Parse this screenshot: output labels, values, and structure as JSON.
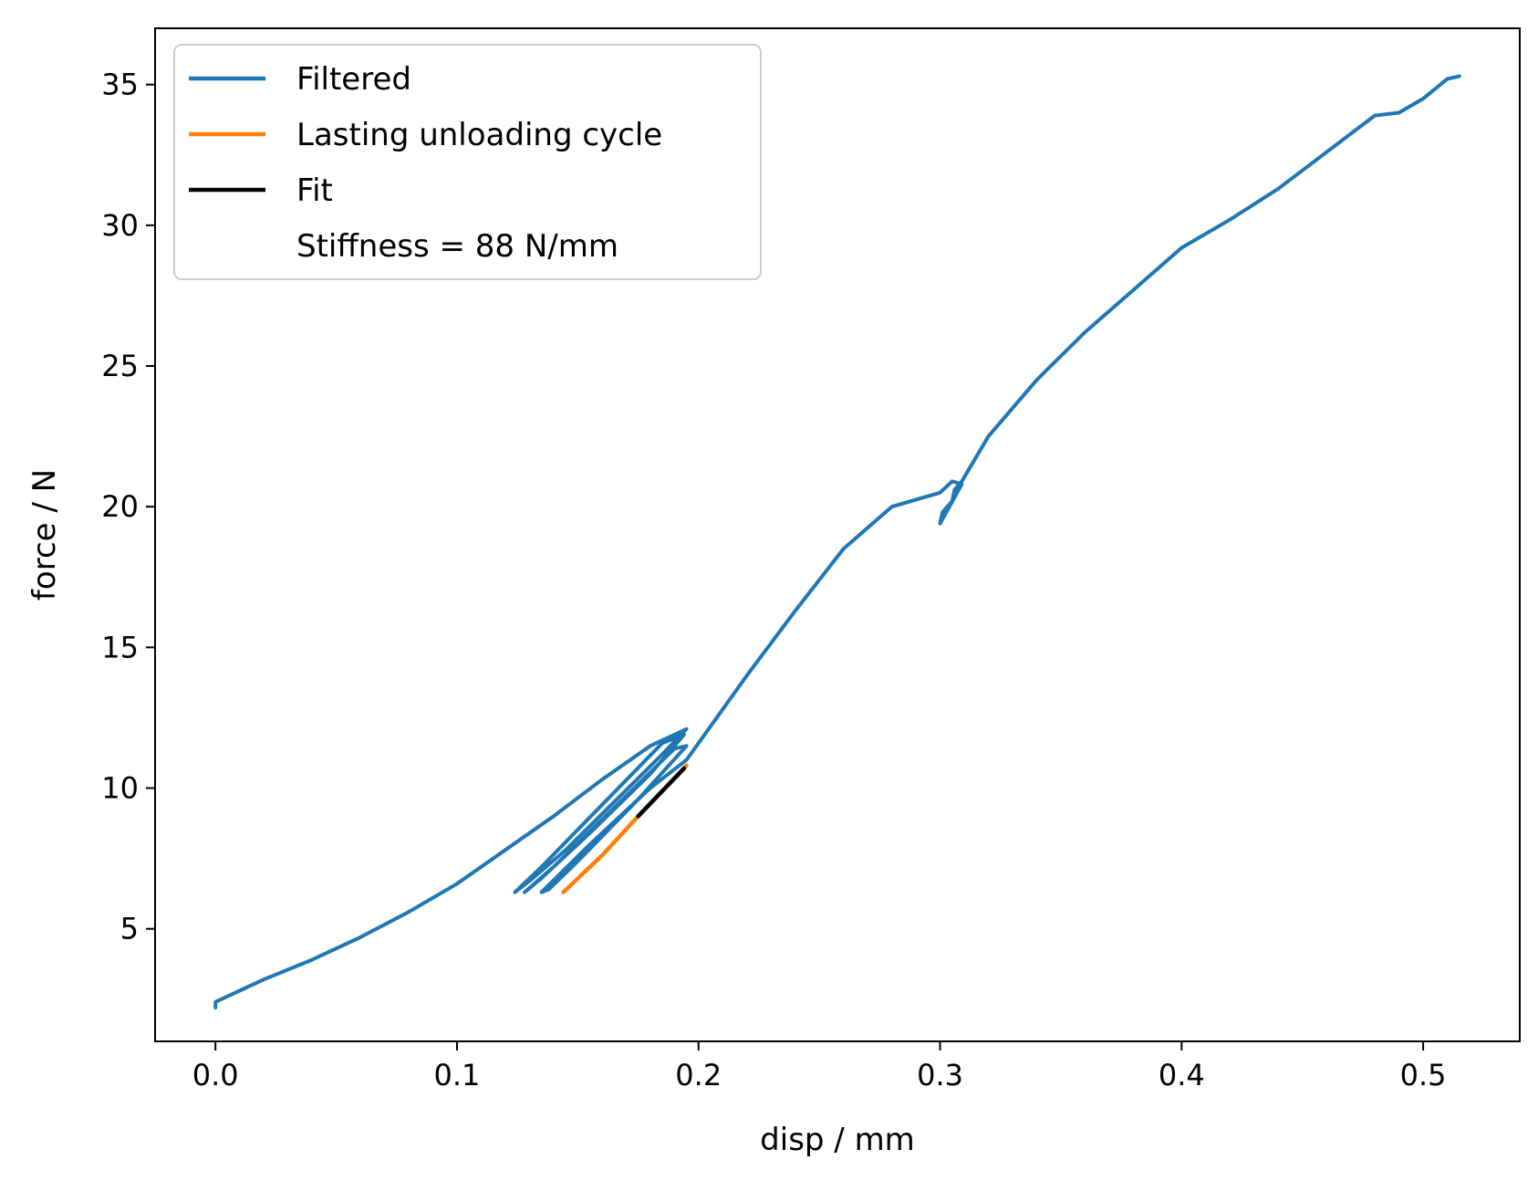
{
  "chart_data": {
    "type": "line",
    "title": "",
    "xlabel": "disp / mm",
    "ylabel": "force / N",
    "xlim": [
      -0.025,
      0.54
    ],
    "ylim": [
      1.0,
      37.0
    ],
    "xticks": [
      0.0,
      0.1,
      0.2,
      0.3,
      0.4,
      0.5
    ],
    "xtick_labels": [
      "0.0",
      "0.1",
      "0.2",
      "0.3",
      "0.4",
      "0.5"
    ],
    "yticks": [
      5,
      10,
      15,
      20,
      25,
      30,
      35
    ],
    "ytick_labels": [
      "5",
      "10",
      "15",
      "20",
      "25",
      "30",
      "35"
    ],
    "grid": false,
    "legend_position": "upper-left",
    "legend": [
      {
        "label": "Filtered",
        "color": "#1f77b4",
        "line": true
      },
      {
        "label": "Lasting unloading cycle",
        "color": "#ff7f0e",
        "line": true
      },
      {
        "label": "Fit",
        "color": "#000000",
        "line": true
      },
      {
        "label": "Stiffness = 88 N/mm",
        "color": "#ffffff",
        "line": false
      }
    ],
    "series": [
      {
        "name": "Filtered",
        "color": "#1f77b4",
        "x": [
          0.0,
          0.0,
          0.01,
          0.02,
          0.04,
          0.06,
          0.08,
          0.1,
          0.12,
          0.14,
          0.16,
          0.18,
          0.195,
          0.185,
          0.165,
          0.145,
          0.13,
          0.124,
          0.135,
          0.16,
          0.185,
          0.194,
          0.18,
          0.155,
          0.135,
          0.128,
          0.14,
          0.165,
          0.19,
          0.195,
          0.175,
          0.15,
          0.138,
          0.135,
          0.155,
          0.18,
          0.195,
          0.2,
          0.22,
          0.24,
          0.26,
          0.28,
          0.3,
          0.305,
          0.309,
          0.3,
          0.301,
          0.305,
          0.306,
          0.309,
          0.32,
          0.34,
          0.36,
          0.38,
          0.4,
          0.42,
          0.44,
          0.46,
          0.48,
          0.49,
          0.5,
          0.51,
          0.515
        ],
        "y": [
          2.2,
          2.4,
          2.8,
          3.2,
          3.9,
          4.7,
          5.6,
          6.6,
          7.8,
          9.0,
          10.3,
          11.5,
          12.1,
          11.2,
          9.5,
          7.8,
          6.7,
          6.3,
          7.2,
          9.4,
          11.6,
          11.9,
          10.5,
          8.4,
          6.8,
          6.3,
          7.2,
          9.3,
          11.4,
          11.5,
          9.6,
          7.4,
          6.4,
          6.3,
          8.0,
          10.0,
          11.0,
          11.6,
          14.0,
          16.3,
          18.5,
          20.0,
          20.5,
          20.9,
          20.8,
          19.4,
          19.8,
          20.2,
          20.6,
          20.9,
          22.5,
          24.5,
          26.2,
          27.7,
          29.2,
          30.2,
          31.3,
          32.6,
          33.9,
          34.0,
          34.5,
          35.2,
          35.3
        ]
      },
      {
        "name": "Lasting unloading cycle",
        "color": "#ff7f0e",
        "x": [
          0.144,
          0.16,
          0.175,
          0.195
        ],
        "y": [
          6.3,
          7.6,
          9.0,
          10.8
        ]
      },
      {
        "name": "Fit",
        "color": "#000000",
        "x": [
          0.175,
          0.194
        ],
        "y": [
          9.0,
          10.7
        ]
      }
    ]
  }
}
